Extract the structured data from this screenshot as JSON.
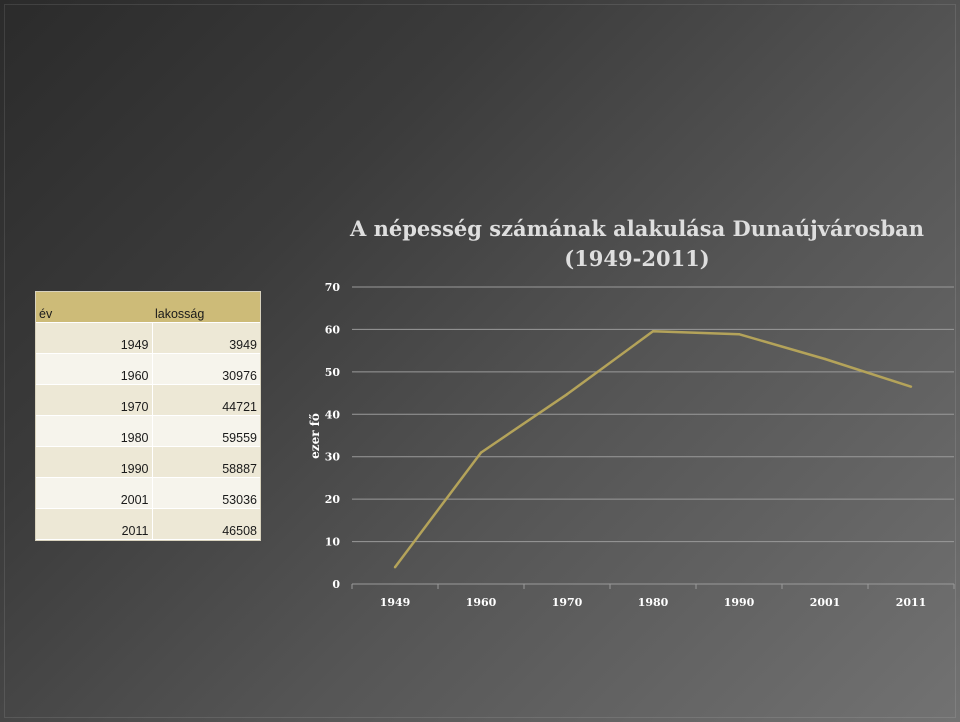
{
  "table": {
    "headers": [
      "év",
      "lakosság"
    ],
    "rows": [
      [
        "1949",
        "3949"
      ],
      [
        "1960",
        "30976"
      ],
      [
        "1970",
        "44721"
      ],
      [
        "1980",
        "59559"
      ],
      [
        "1990",
        "58887"
      ],
      [
        "2001",
        "53036"
      ],
      [
        "2011",
        "46508"
      ]
    ]
  },
  "chart_data": {
    "type": "line",
    "title_line1": "A népesség számának alakulása Dunaújvárosban",
    "title_line2": "(1949-2011)",
    "xlabel": "",
    "ylabel": "ezer fő",
    "categories": [
      "1949",
      "1960",
      "1970",
      "1980",
      "1990",
      "2001",
      "2011"
    ],
    "series": [
      {
        "values": [
          3.949,
          30.976,
          44.721,
          59.559,
          58.887,
          53.036,
          46.508
        ]
      }
    ],
    "ylim": [
      0,
      70
    ],
    "yticks": [
      0,
      10,
      20,
      30,
      40,
      50,
      60,
      70
    ],
    "grid": true,
    "line_color": "#b4a35a",
    "grid_color": "#9a9a9a"
  }
}
